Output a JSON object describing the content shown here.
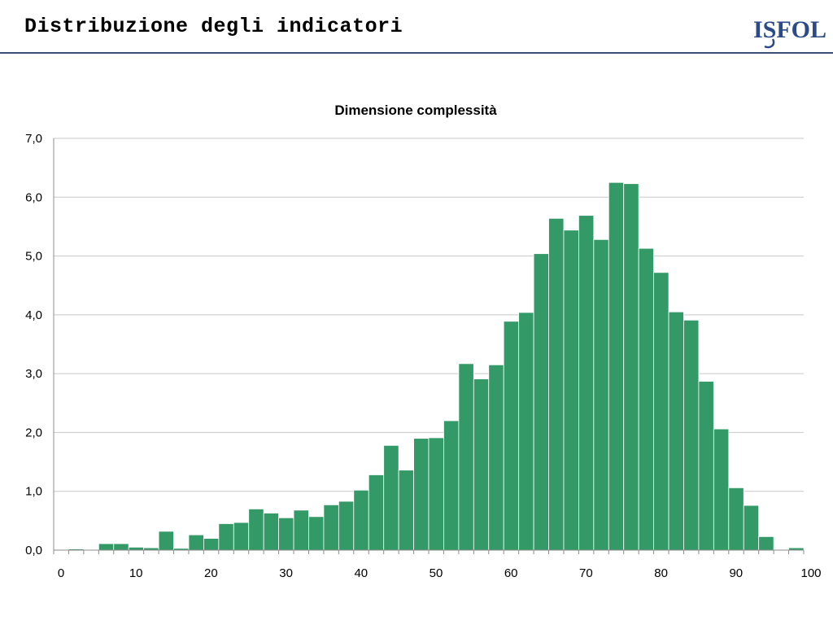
{
  "header": {
    "title": "Distribuzione degli indicatori",
    "logo_text": "ISFOL"
  },
  "colors": {
    "bar": "#339966",
    "header_rule": "#3a4f73",
    "logo": "#2b4a8a"
  },
  "chart_data": {
    "type": "bar",
    "title": "Dimensione complessità",
    "xlabel": "",
    "ylabel": "",
    "xlim": [
      0,
      100
    ],
    "ylim": [
      0,
      7
    ],
    "bin_width": 2,
    "bin_starts": [
      0,
      2,
      4,
      6,
      8,
      10,
      12,
      14,
      16,
      18,
      20,
      22,
      24,
      26,
      28,
      30,
      32,
      34,
      36,
      38,
      40,
      42,
      44,
      46,
      48,
      50,
      52,
      54,
      56,
      58,
      60,
      62,
      64,
      66,
      68,
      70,
      72,
      74,
      76,
      78,
      80,
      82,
      84,
      86,
      88,
      90,
      92,
      94,
      96,
      98
    ],
    "values": [
      0.0,
      0.02,
      0.0,
      0.11,
      0.11,
      0.05,
      0.04,
      0.32,
      0.03,
      0.26,
      0.2,
      0.45,
      0.47,
      0.7,
      0.63,
      0.55,
      0.68,
      0.57,
      0.77,
      0.83,
      1.02,
      1.28,
      1.78,
      1.36,
      1.9,
      1.91,
      2.2,
      3.17,
      2.91,
      3.15,
      3.89,
      4.04,
      5.04,
      5.64,
      5.44,
      5.69,
      5.28,
      6.25,
      6.23,
      5.13,
      4.72,
      4.05,
      3.91,
      2.87,
      2.06,
      1.06,
      0.76,
      0.23,
      0.0,
      0.04
    ],
    "y_ticks": [
      "0,0",
      "1,0",
      "2,0",
      "3,0",
      "4,0",
      "5,0",
      "6,0",
      "7,0"
    ],
    "x_ticks": [
      "0",
      "10",
      "20",
      "30",
      "40",
      "50",
      "60",
      "70",
      "80",
      "90",
      "100"
    ],
    "grid": true,
    "legend": "none"
  }
}
